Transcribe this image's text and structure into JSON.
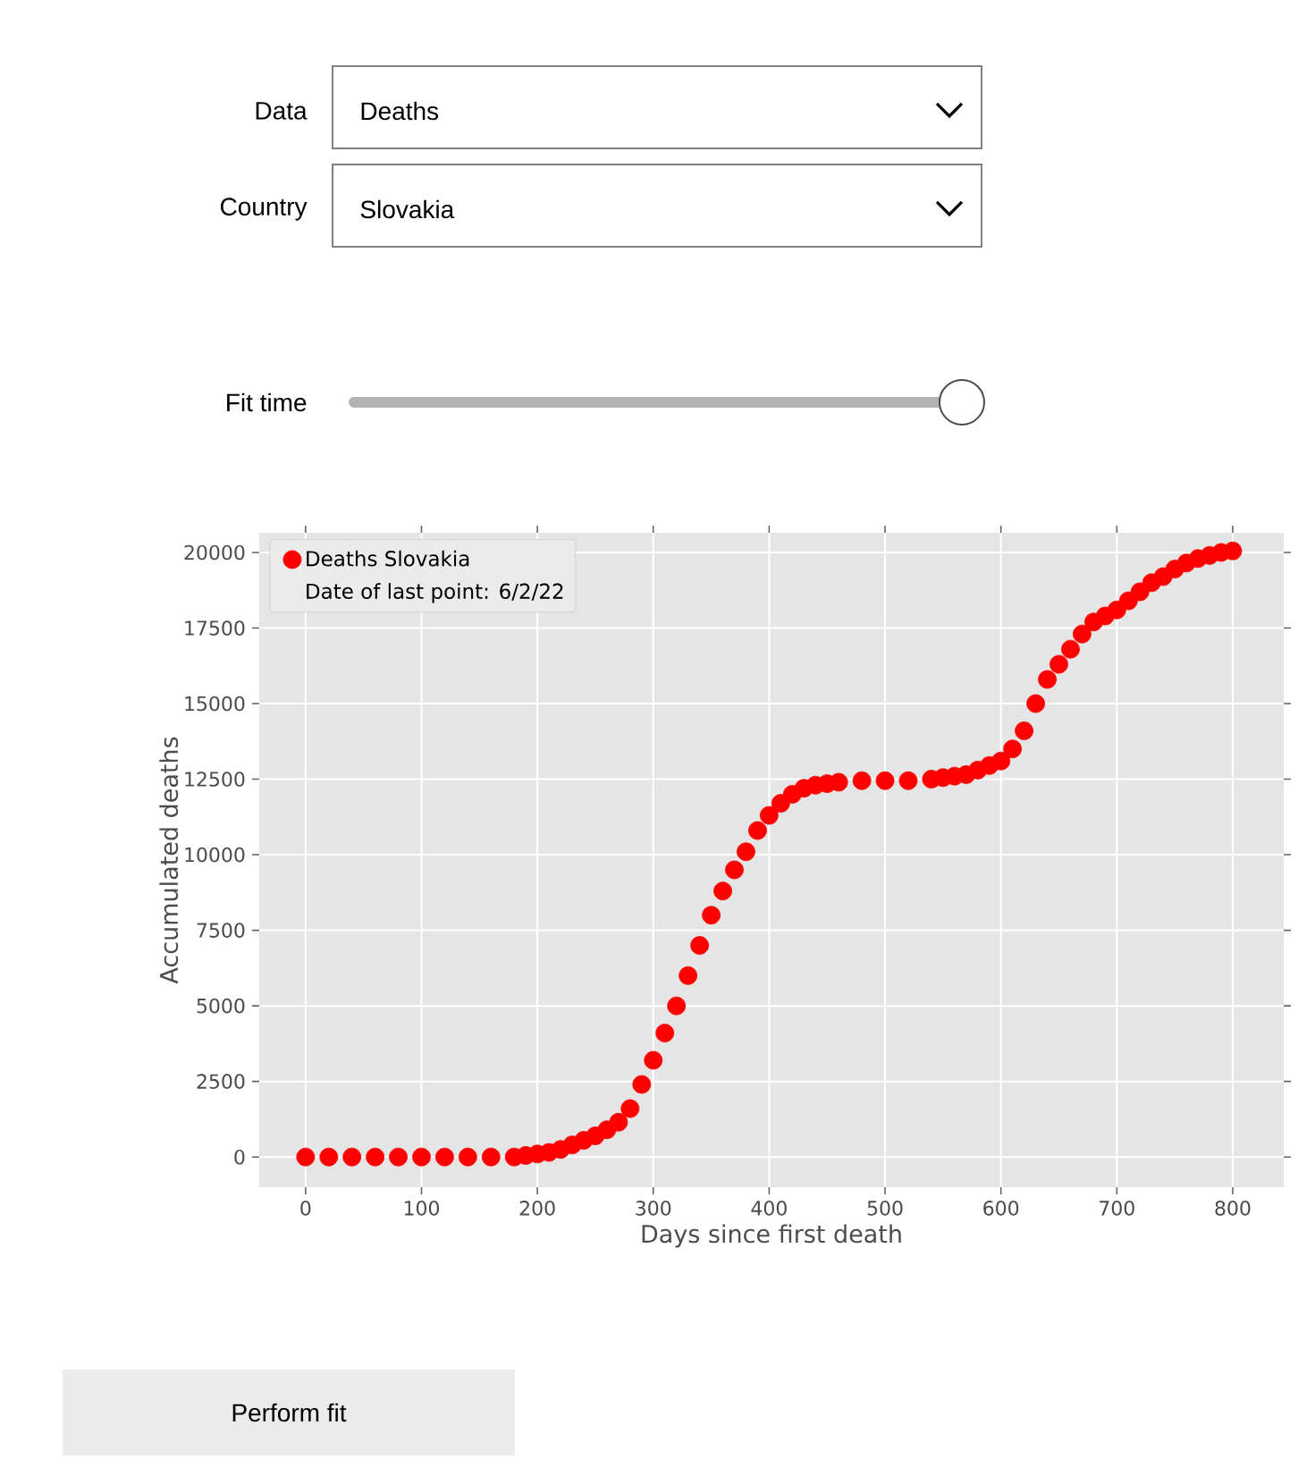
{
  "chart_data": {
    "type": "scatter",
    "xlabel": "Days since first death",
    "ylabel": "Accumulated deaths",
    "annotations": [
      "Date of last point: 6/2/22",
      "Data",
      "Deaths",
      "Country",
      "Slovakia",
      "Fit time",
      "Perform fit"
    ],
    "x": [
      0,
      20,
      40,
      60,
      80,
      100,
      120,
      140,
      160,
      180,
      190,
      200,
      210,
      220,
      230,
      240,
      250,
      260,
      270,
      280,
      290,
      300,
      310,
      320,
      330,
      340,
      350,
      360,
      370,
      380,
      390,
      400,
      410,
      420,
      430,
      440,
      450,
      460,
      480,
      500,
      520,
      540,
      550,
      560,
      570,
      580,
      590,
      600,
      610,
      620,
      630,
      640,
      650,
      660,
      670,
      680,
      690,
      700,
      710,
      720,
      730,
      740,
      750,
      760,
      770,
      780,
      790,
      800
    ],
    "series": [
      {
        "name": "Deaths Slovakia",
        "color": "#ff0000",
        "values": [
          0,
          0,
          0,
          0,
          0,
          0,
          0,
          0,
          0,
          0,
          50,
          100,
          150,
          250,
          400,
          550,
          700,
          900,
          1150,
          1600,
          2400,
          3200,
          4100,
          5000,
          6000,
          7000,
          8000,
          8800,
          9500,
          10100,
          10800,
          11300,
          11700,
          12000,
          12200,
          12300,
          12350,
          12400,
          12450,
          12450,
          12450,
          12500,
          12550,
          12600,
          12650,
          12800,
          12950,
          13100,
          13500,
          14100,
          15000,
          15800,
          16300,
          16800,
          17300,
          17700,
          17900,
          18100,
          18400,
          18700,
          19000,
          19200,
          19450,
          19650,
          19800,
          19900,
          20000,
          20050
        ]
      }
    ],
    "xlim": [
      -40,
      844
    ],
    "ylim": [
      -1000,
      20650
    ],
    "xticks": [
      0,
      100,
      200,
      300,
      400,
      500,
      600,
      700,
      800
    ],
    "yticks": [
      0,
      2500,
      5000,
      7500,
      10000,
      12500,
      15000,
      17500,
      20000
    ],
    "grid": true,
    "legend": "top left",
    "marker": "circle"
  }
}
